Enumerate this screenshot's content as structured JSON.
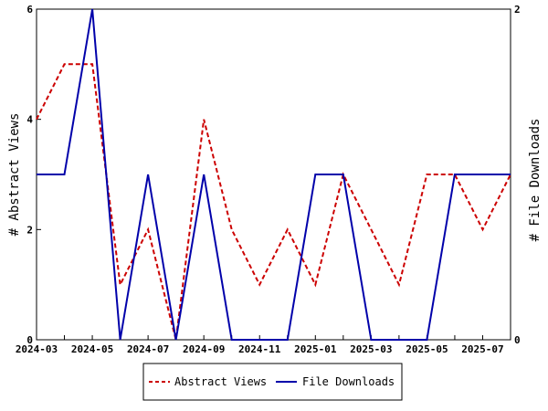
{
  "chart_data": {
    "type": "line",
    "x_tick_labels": [
      "2024-03",
      "2024-05",
      "2024-07",
      "2024-09",
      "2024-11",
      "2025-01",
      "2025-03",
      "2025-05",
      "2025-07"
    ],
    "x": [
      "2024-03",
      "2024-04",
      "2024-05",
      "2024-06",
      "2024-07",
      "2024-08",
      "2024-09",
      "2024-10",
      "2024-11",
      "2024-12",
      "2025-01",
      "2025-02",
      "2025-03",
      "2025-04",
      "2025-05",
      "2025-06",
      "2025-07",
      "2025-08"
    ],
    "y_left": {
      "label": "# Abstract Views",
      "range": [
        0,
        6
      ],
      "ticks": [
        0,
        2,
        4,
        6
      ]
    },
    "y_right": {
      "label": "# File Downloads",
      "range": [
        0,
        2
      ],
      "ticks": [
        0,
        2
      ]
    },
    "series": [
      {
        "name": "Abstract Views",
        "axis": "left",
        "color": "#cc0000",
        "dash": true,
        "values": [
          4,
          5,
          5,
          1,
          2,
          0,
          4,
          2,
          1,
          2,
          1,
          3,
          2,
          1,
          3,
          3,
          2,
          3
        ]
      },
      {
        "name": "File Downloads",
        "axis": "right",
        "color": "#0000aa",
        "dash": false,
        "values": [
          1,
          1,
          2,
          0,
          1,
          0,
          1,
          0,
          0,
          0,
          1,
          1,
          0,
          0,
          0,
          1,
          1,
          1
        ]
      }
    ],
    "legend": {
      "position": "bottom-center"
    },
    "grid": false
  }
}
